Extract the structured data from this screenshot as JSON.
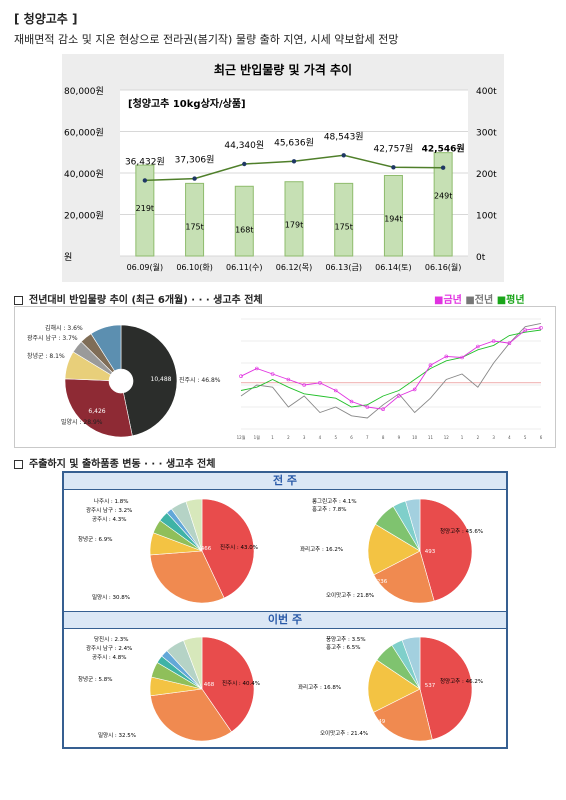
{
  "header": {
    "title": "[ 청양고추 ]",
    "summary": "재배면적 감소 및 지온 현상으로 전라권(봄기작) 물량 출하 지연, 시세 약보합세 전망"
  },
  "chart_data": [
    {
      "type": "bar",
      "title": "최근 반입물량 및 가격 추이",
      "subtitle": "[청양고추 10kg상자/상품]",
      "categories": [
        "06.09(월)",
        "06.10(화)",
        "06.11(수)",
        "06.12(목)",
        "06.13(금)",
        "06.14(토)",
        "06.16(월)"
      ],
      "series": [
        {
          "values": [
            219,
            175,
            168,
            179,
            175,
            194,
            249
          ],
          "labels": [
            "219t",
            "175t",
            "168t",
            "179t",
            "175t",
            "194t",
            "249t"
          ]
        },
        {
          "values": [
            36432,
            37306,
            44340,
            45636,
            48543,
            42757,
            42546
          ],
          "labels": [
            "36,432원",
            "37,306원",
            "44,340원",
            "45,636원",
            "48,543원",
            "42,757원",
            "42,546원"
          ]
        }
      ],
      "y_left_ticks": [
        "80,000원",
        "60,000원",
        "40,000원",
        "20,000원",
        "원"
      ],
      "y_right_ticks": [
        "400t",
        "300t",
        "200t",
        "100t",
        "0t"
      ],
      "ylim_left": [
        0,
        80000
      ],
      "ylim_right": [
        0,
        400
      ]
    },
    {
      "type": "pie",
      "values": [
        46.8,
        28.9,
        8.1,
        3.7,
        3.6,
        9.0
      ],
      "slice_labels": [
        "10,488",
        "6,426",
        "",
        "",
        "",
        ""
      ],
      "legend_labels": [
        "진주시 : 46.8%",
        "밀양시 : 28.9%",
        "창녕군 : 8.1%",
        "광주시 남구 : 3.7%",
        "김해시 : 3.6%"
      ]
    },
    {
      "type": "line",
      "x": [
        "12월",
        "1월",
        "1",
        "2",
        "3",
        "4",
        "5",
        "6",
        "7",
        "8",
        "9",
        "10",
        "11",
        "12",
        "1",
        "2",
        "3",
        "4",
        "5",
        "6"
      ]
    }
  ],
  "sec1": {
    "title": "전년대비 반입물량 추이 (최근 6개월) · · · 생고추 전체",
    "legend": [
      "■금년",
      "■전년",
      "■평년"
    ]
  },
  "sec2": {
    "title": "주출하지 및 출하품종 변동 · · · 생고추 전체",
    "prev": {
      "band": "전 주",
      "region_labels": [
        "나주시 : 1.8%",
        "광주시 남구 : 3.2%",
        "공주시 : 4.3%",
        "창녕군 : 6.9%",
        "밀양시 : 30.8%",
        "진주시 : 43.0%"
      ],
      "region_values": [
        "466",
        "331",
        "74"
      ],
      "variety_labels": [
        "롱그린고추 : 4.1%",
        "홍고추 : 7.8%",
        "꽈리고추 : 16.2%",
        "오이맛고추 : 21.8%",
        "청양고추 : 45.6%"
      ],
      "variety_values": [
        "493",
        "236",
        "175",
        "73"
      ]
    },
    "curr": {
      "band": "이번 주",
      "region_labels": [
        "당진시 : 2.3%",
        "광주시 남구 : 2.4%",
        "공주시 : 4.8%",
        "창녕군 : 5.8%",
        "밀양시 : 32.5%",
        "진주시 : 40.4%"
      ],
      "region_values": [
        "468",
        "378",
        "66"
      ],
      "variety_labels": [
        "풍양고추 : 3.5%",
        "홍고추 : 6.5%",
        "꽈리고추 : 16.8%",
        "오이맛고추 : 21.4%",
        "청양고추 : 46.2%"
      ],
      "variety_values": [
        "537",
        "249",
        "195"
      ]
    }
  },
  "colors": {
    "bar": "#c6e0b4",
    "line": "#4f7f2a",
    "this_year": "#e032e0",
    "last_year": "#888888",
    "avg": "#22c02a"
  }
}
